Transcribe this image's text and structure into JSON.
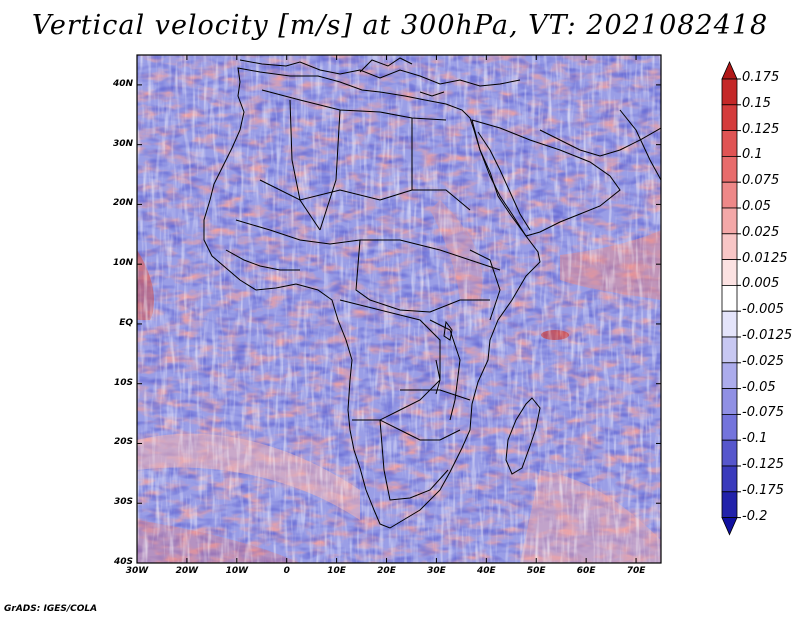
{
  "title": "Vertical velocity [m/s] at 300hPa, VT: 2021082418",
  "credit": "GrADS: IGES/COLA",
  "map": {
    "variable": "Vertical velocity",
    "units": "m/s",
    "level": "300hPa",
    "valid_time": "2021082418",
    "lon_range": [
      -30,
      75
    ],
    "lat_range": [
      -40,
      45
    ],
    "x_ticks": [
      "30W",
      "20W",
      "10W",
      "0",
      "10E",
      "20E",
      "30E",
      "40E",
      "50E",
      "60E",
      "70E"
    ],
    "x_tick_values": [
      -30,
      -20,
      -10,
      0,
      10,
      20,
      30,
      40,
      50,
      60,
      70
    ],
    "y_ticks": [
      "40N",
      "30N",
      "20N",
      "10N",
      "EQ",
      "10S",
      "20S",
      "30S",
      "40S"
    ],
    "y_tick_values": [
      40,
      30,
      20,
      10,
      0,
      -10,
      -20,
      -30,
      -40
    ]
  },
  "colorbar": {
    "labels": [
      "0.175",
      "0.15",
      "0.125",
      "0.1",
      "0.075",
      "0.05",
      "0.025",
      "0.0125",
      "0.005",
      "-0.005",
      "-0.0125",
      "-0.025",
      "-0.05",
      "-0.075",
      "-0.1",
      "-0.125",
      "-0.175",
      "-0.2"
    ],
    "colors": [
      "#b01818",
      "#c42828",
      "#d43c3c",
      "#e05454",
      "#e86c6c",
      "#ee8888",
      "#f4a8a8",
      "#f8c6c6",
      "#fce2e2",
      "#ffffff",
      "#e4e4fa",
      "#c8c8f2",
      "#acacec",
      "#9090e4",
      "#7474dc",
      "#5656cc",
      "#3a3abc",
      "#2222aa",
      "#1010a0"
    ]
  },
  "colors": {
    "positive_accent": "#e05454",
    "negative_accent": "#5656cc"
  }
}
